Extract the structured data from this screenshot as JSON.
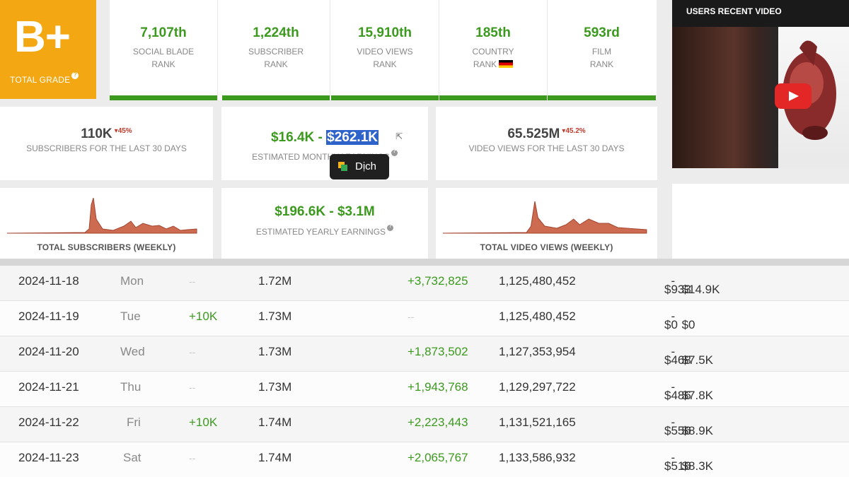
{
  "grade": {
    "letter": "B+",
    "label": "TOTAL GRADE"
  },
  "ranks": [
    {
      "value": "7,107th",
      "line1": "SOCIAL BLADE",
      "line2": "RANK"
    },
    {
      "value": "1,224th",
      "line1": "SUBSCRIBER",
      "line2": "RANK"
    },
    {
      "value": "15,910th",
      "line1": "VIDEO VIEWS",
      "line2": "RANK"
    },
    {
      "value": "185th",
      "line1": "COUNTRY",
      "line2": "RANK"
    },
    {
      "value": "593rd",
      "line1": "FILM",
      "line2": "RANK"
    }
  ],
  "stats": {
    "subs30": {
      "value": "110K",
      "delta": "45%",
      "label": "SUBSCRIBERS FOR THE LAST 30 DAYS"
    },
    "monthly": {
      "low": "$16.4K",
      "sep": " - ",
      "high": "$262.1K",
      "label": "ESTIMATED MONTHLY EARNINGS"
    },
    "views30": {
      "value": "65.525M",
      "delta": "45.2%",
      "label": "VIDEO VIEWS FOR THE LAST 30 DAYS"
    },
    "yearly": {
      "low": "$196.6K",
      "sep": " - ",
      "high": "$3.1M",
      "label": "ESTIMATED YEARLY EARNINGS"
    }
  },
  "sparklines": {
    "subs_label": "TOTAL SUBSCRIBERS (WEEKLY)",
    "views_label": "TOTAL VIDEO VIEWS (WEEKLY)"
  },
  "tooltip": {
    "text": "Dịch"
  },
  "video": {
    "title": "USERS RECENT VIDEO"
  },
  "colors": {
    "grade": "#f3a712",
    "green": "#3b9a1e",
    "decline": "#c0392b",
    "spark": "#c7634a"
  },
  "table": {
    "rows": [
      {
        "date": "2024-11-18",
        "day": "Mon",
        "sub_change": "--",
        "subs": "1.72M",
        "views_change": "+3,732,825",
        "views_total": "1,125,480,452",
        "earn_low": "$933",
        "earn_high": "$14.9K"
      },
      {
        "date": "2024-11-19",
        "day": "Tue",
        "sub_change": "+10K",
        "subs": "1.73M",
        "views_change": "--",
        "views_total": "1,125,480,452",
        "earn_low": "$0",
        "earn_high": "$0"
      },
      {
        "date": "2024-11-20",
        "day": "Wed",
        "sub_change": "--",
        "subs": "1.73M",
        "views_change": "+1,873,502",
        "views_total": "1,127,353,954",
        "earn_low": "$468",
        "earn_high": "$7.5K"
      },
      {
        "date": "2024-11-21",
        "day": "Thu",
        "sub_change": "--",
        "subs": "1.73M",
        "views_change": "+1,943,768",
        "views_total": "1,129,297,722",
        "earn_low": "$486",
        "earn_high": "$7.8K"
      },
      {
        "date": "2024-11-22",
        "day": "Fri",
        "sub_change": "+10K",
        "subs": "1.74M",
        "views_change": "+2,223,443",
        "views_total": "1,131,521,165",
        "earn_low": "$556",
        "earn_high": "$8.9K"
      },
      {
        "date": "2024-11-23",
        "day": "Sat",
        "sub_change": "--",
        "subs": "1.74M",
        "views_change": "+2,065,767",
        "views_total": "1,133,586,932",
        "earn_low": "$516",
        "earn_high": "$8.3K"
      }
    ]
  }
}
